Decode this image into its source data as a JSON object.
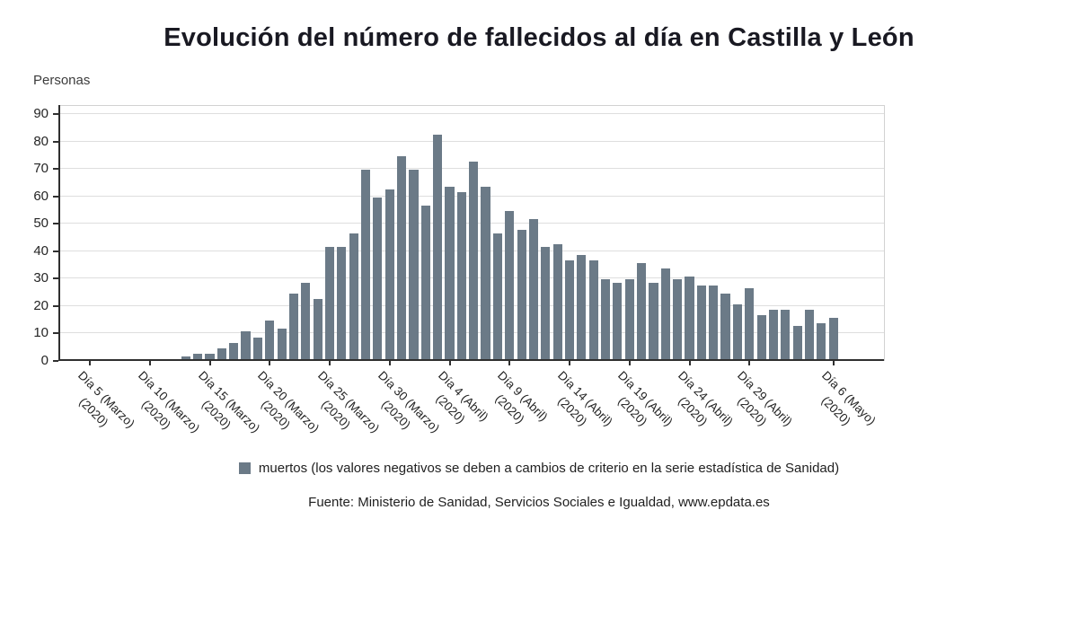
{
  "title": "Evolución del número de fallecidos al día en Castilla y León",
  "legend": {
    "label": "muertos (los valores negativos se deben a cambios de criterio en la serie estadística de Sanidad)"
  },
  "source": "Fuente: Ministerio de Sanidad, Servicios Sociales e Igualdad, www.epdata.es",
  "colors": {
    "bar": "#6b7a87",
    "grid": "#dedede",
    "axis": "#2f2f2f",
    "title_text": "#191922"
  },
  "chart_data": {
    "type": "bar",
    "title": "Evolución del número de fallecidos al día en Castilla y León",
    "xlabel": "",
    "ylabel": "Personas",
    "ylim": [
      0,
      93
    ],
    "yticks": [
      0,
      10,
      20,
      30,
      40,
      50,
      60,
      70,
      80,
      90
    ],
    "grid": true,
    "legend_position": "bottom",
    "series_name": "muertos",
    "values": [
      0,
      0,
      0,
      0,
      0,
      0,
      0,
      0,
      1,
      2,
      2,
      4,
      6,
      10,
      8,
      14,
      11,
      24,
      28,
      22,
      41,
      41,
      46,
      69,
      59,
      62,
      74,
      69,
      56,
      82,
      63,
      61,
      72,
      63,
      46,
      54,
      47,
      51,
      41,
      42,
      36,
      38,
      36,
      29,
      28,
      29,
      35,
      28,
      33,
      29,
      30,
      27,
      27,
      24,
      20,
      26,
      16,
      18,
      18,
      12,
      18,
      13,
      15
    ],
    "x_ticks": [
      {
        "index": 0,
        "label": "Día 5 (Marzo)",
        "year": "(2020)"
      },
      {
        "index": 5,
        "label": "Día 10 (Marzo)",
        "year": "(2020)"
      },
      {
        "index": 10,
        "label": "Día 15 (Marzo)",
        "year": "(2020)"
      },
      {
        "index": 15,
        "label": "Día 20 (Marzo)",
        "year": "(2020)"
      },
      {
        "index": 20,
        "label": "Día 25 (Marzo)",
        "year": "(2020)"
      },
      {
        "index": 25,
        "label": "Día 30 (Marzo)",
        "year": "(2020)"
      },
      {
        "index": 30,
        "label": "Día 4 (Abril)",
        "year": "(2020)"
      },
      {
        "index": 35,
        "label": "Día 9 (Abril)",
        "year": "(2020)"
      },
      {
        "index": 40,
        "label": "Día 14 (Abril)",
        "year": "(2020)"
      },
      {
        "index": 45,
        "label": "Día 19 (Abril)",
        "year": "(2020)"
      },
      {
        "index": 50,
        "label": "Día 24 (Abril)",
        "year": "(2020)"
      },
      {
        "index": 55,
        "label": "Día 29 (Abril)",
        "year": "(2020)"
      },
      {
        "index": 62,
        "label": "Día 6 (Mayo)",
        "year": "(2020)"
      }
    ]
  }
}
